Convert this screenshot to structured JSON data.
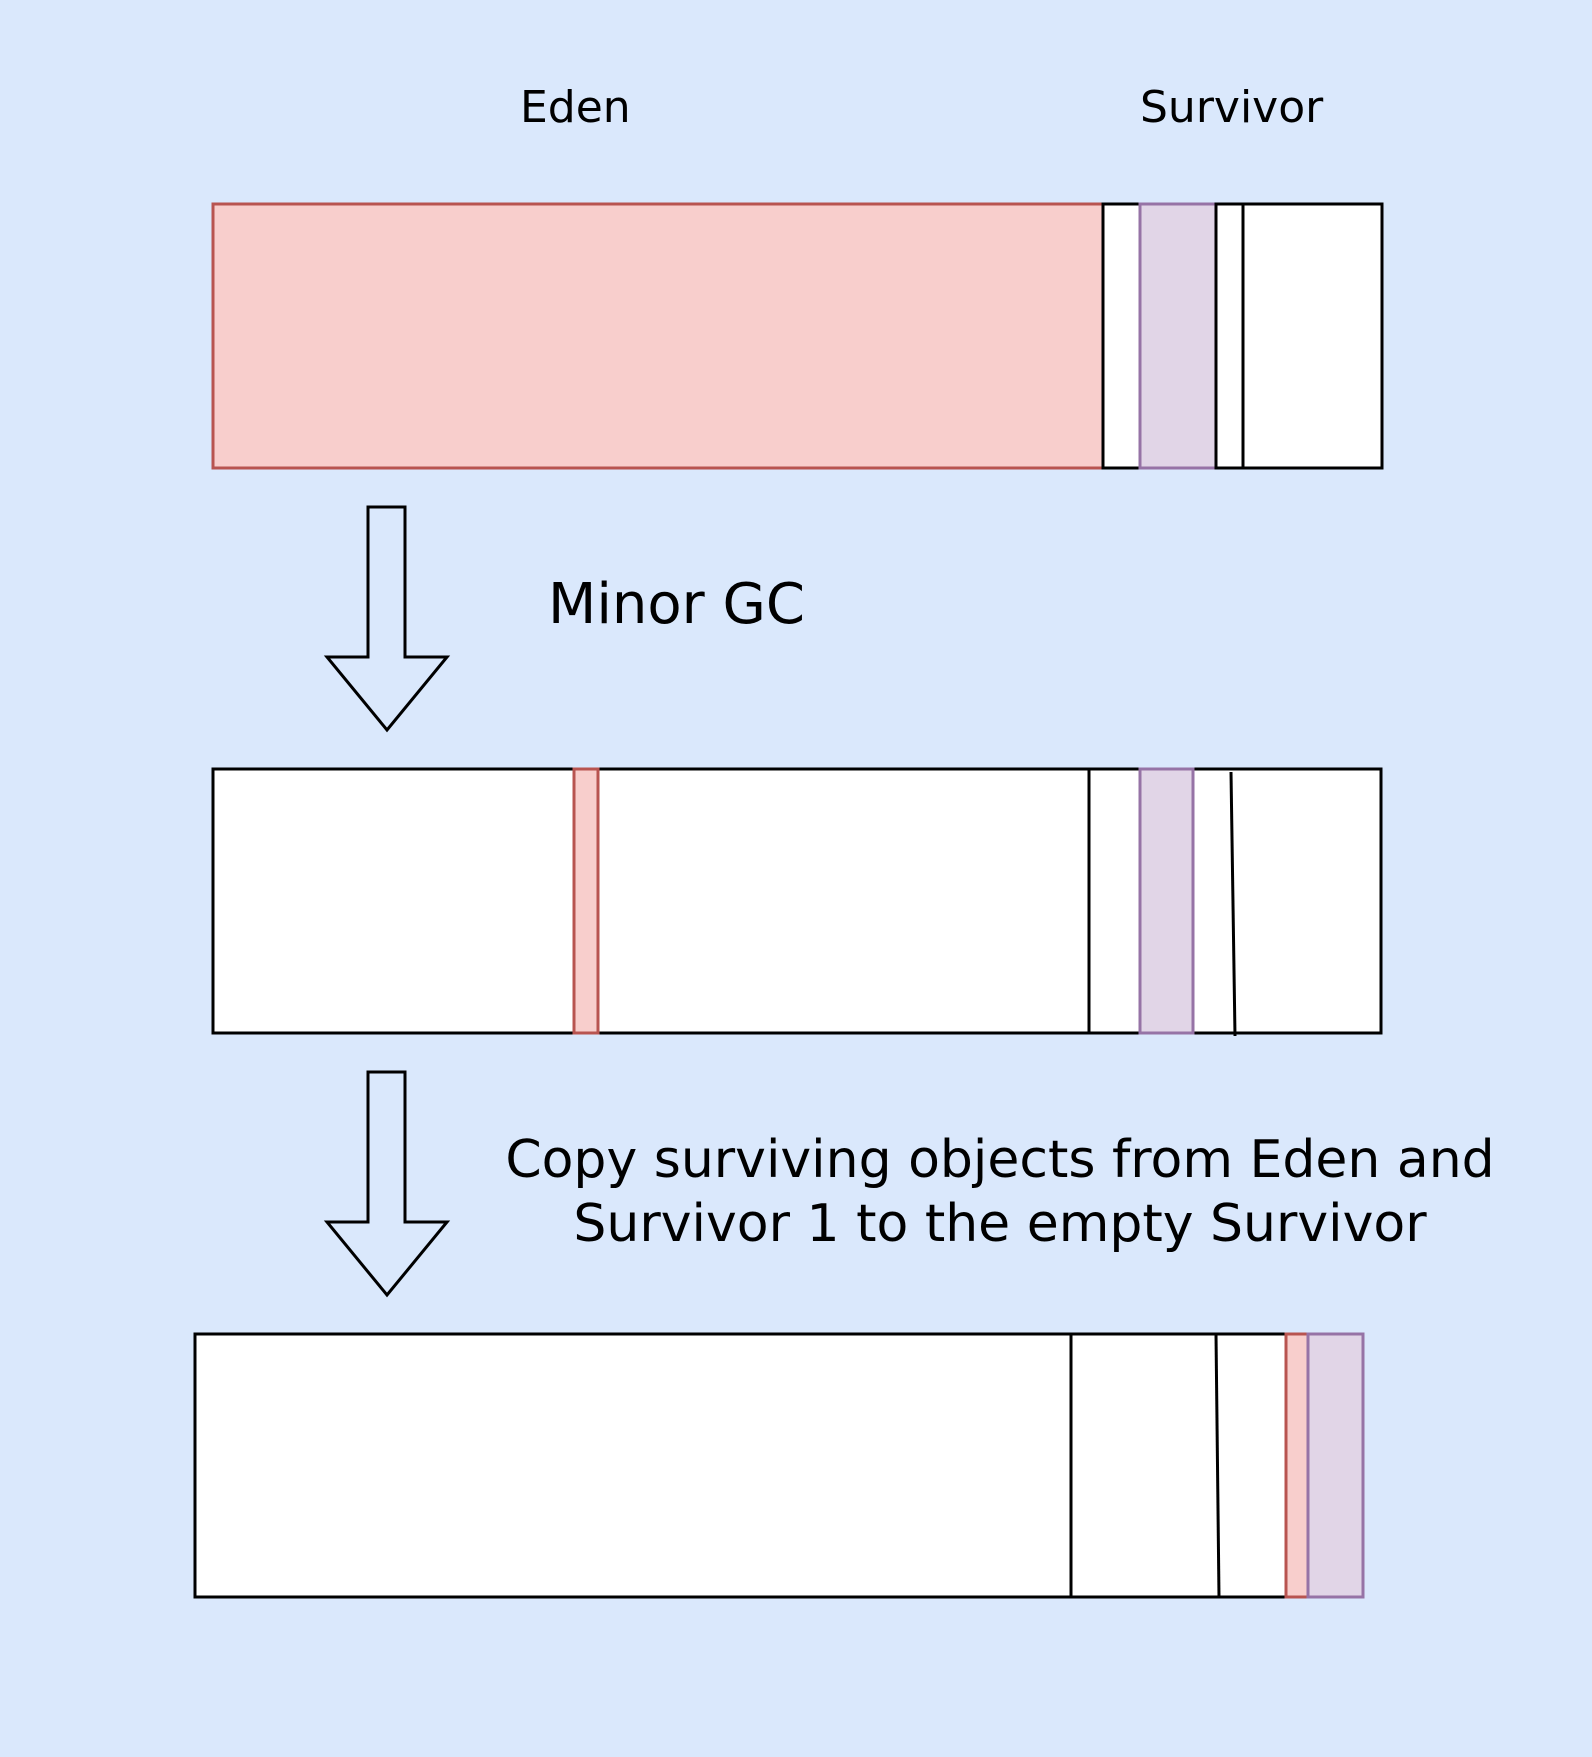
{
  "labels": {
    "eden": "Eden",
    "survivor": "Survivor",
    "minor_gc": "Minor GC",
    "copy_line1": "Copy surviving objects from Eden and",
    "copy_line2": "Survivor 1 to the empty Survivor"
  },
  "colors": {
    "background": "#dae8fc",
    "eden_fill": "#f8cecc",
    "eden_stroke": "#b85450",
    "survivor_fill": "#e1d5e7",
    "survivor_stroke": "#9673a6",
    "outline": "#000000",
    "empty_fill": "#ffffff"
  }
}
